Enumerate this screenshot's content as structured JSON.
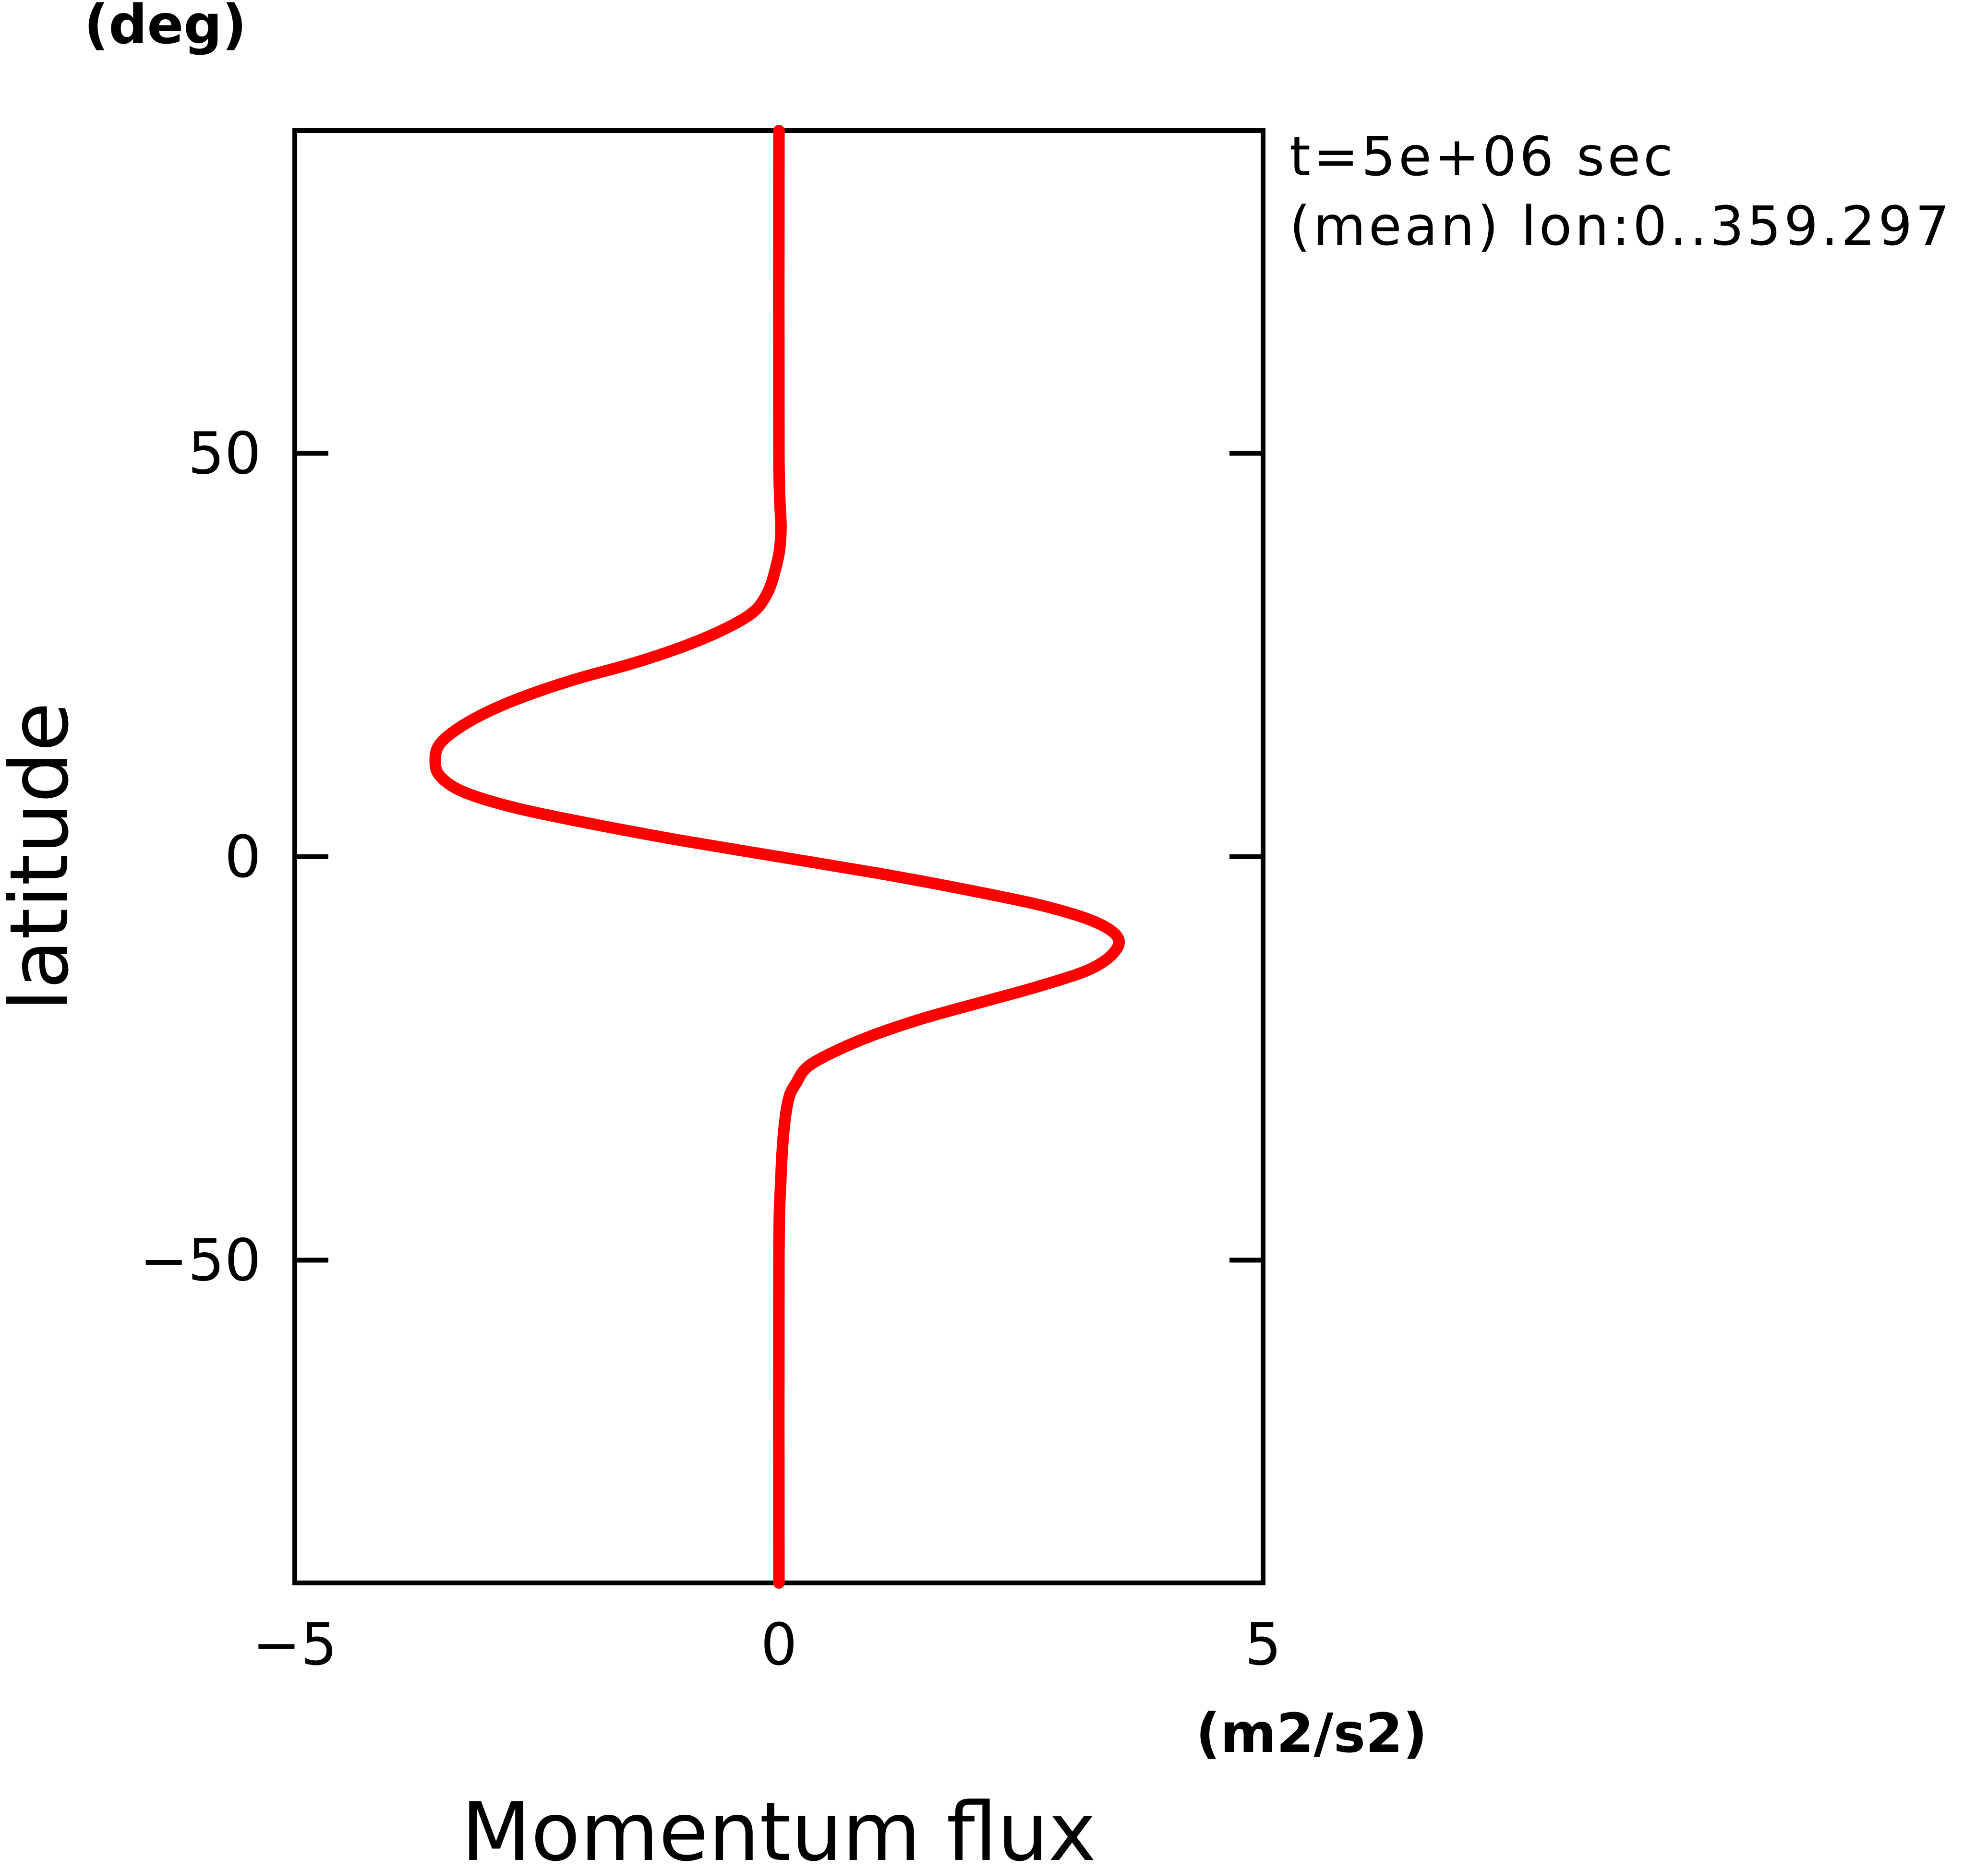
{
  "chart_data": {
    "type": "line",
    "xlabel": "Momentum flux",
    "xunit": "(m2/s2)",
    "ylabel": "latitude",
    "yunit": "(deg)",
    "xlim": [
      -5,
      5
    ],
    "ylim": [
      -90,
      90
    ],
    "xticks": [
      {
        "value": -5,
        "label": "−5"
      },
      {
        "value": 0,
        "label": "0"
      },
      {
        "value": 5,
        "label": "5"
      }
    ],
    "yticks": [
      {
        "value": 50,
        "label": "50"
      },
      {
        "value": 0,
        "label": "0"
      },
      {
        "value": -50,
        "label": "−50"
      }
    ],
    "annotations": [
      "t=5e+06 sec",
      "(mean) lon:0..359.297"
    ],
    "grid": false,
    "series": [
      {
        "color": "#ff0000",
        "points": [
          {
            "lat": 90,
            "flux": 0.0
          },
          {
            "lat": 50,
            "flux": 0.0
          },
          {
            "lat": 40,
            "flux": 0.02
          },
          {
            "lat": 35,
            "flux": -0.05
          },
          {
            "lat": 32,
            "flux": -0.15
          },
          {
            "lat": 30,
            "flux": -0.3
          },
          {
            "lat": 28,
            "flux": -0.6
          },
          {
            "lat": 26,
            "flux": -1.0
          },
          {
            "lat": 24,
            "flux": -1.5
          },
          {
            "lat": 22,
            "flux": -2.1
          },
          {
            "lat": 20,
            "flux": -2.6
          },
          {
            "lat": 18,
            "flux": -3.0
          },
          {
            "lat": 16,
            "flux": -3.3
          },
          {
            "lat": 14,
            "flux": -3.5
          },
          {
            "lat": 12,
            "flux": -3.55
          },
          {
            "lat": 10,
            "flux": -3.5
          },
          {
            "lat": 8,
            "flux": -3.25
          },
          {
            "lat": 6,
            "flux": -2.7
          },
          {
            "lat": 4,
            "flux": -1.9
          },
          {
            "lat": 2,
            "flux": -1.0
          },
          {
            "lat": 0,
            "flux": 0.0
          },
          {
            "lat": -2,
            "flux": 1.0
          },
          {
            "lat": -4,
            "flux": 1.9
          },
          {
            "lat": -6,
            "flux": 2.7
          },
          {
            "lat": -8,
            "flux": 3.25
          },
          {
            "lat": -10,
            "flux": 3.5
          },
          {
            "lat": -12,
            "flux": 3.45
          },
          {
            "lat": -14,
            "flux": 3.2
          },
          {
            "lat": -16,
            "flux": 2.7
          },
          {
            "lat": -18,
            "flux": 2.1
          },
          {
            "lat": -20,
            "flux": 1.5
          },
          {
            "lat": -22,
            "flux": 1.0
          },
          {
            "lat": -24,
            "flux": 0.6
          },
          {
            "lat": -26,
            "flux": 0.3
          },
          {
            "lat": -28,
            "flux": 0.18
          },
          {
            "lat": -30,
            "flux": 0.1
          },
          {
            "lat": -34,
            "flux": 0.05
          },
          {
            "lat": -40,
            "flux": 0.02
          },
          {
            "lat": -50,
            "flux": 0.0
          },
          {
            "lat": -90,
            "flux": 0.0
          }
        ]
      }
    ]
  }
}
